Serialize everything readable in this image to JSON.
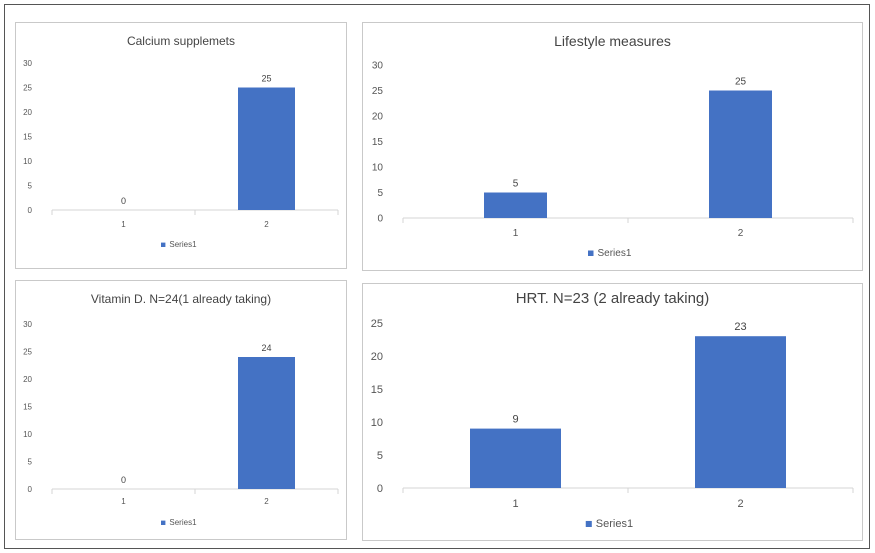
{
  "chart_data": [
    {
      "type": "bar",
      "title": "Calcium supplemets",
      "categories": [
        "1",
        "2"
      ],
      "series": [
        {
          "name": "Series1",
          "values": [
            0,
            25
          ]
        }
      ],
      "data_labels": [
        "0",
        "25"
      ],
      "yticks": [
        "0",
        "5",
        "10",
        "15",
        "20",
        "25",
        "30"
      ],
      "ylim": [
        0,
        30
      ],
      "xlabel": "",
      "ylabel": "",
      "legend": "bottom",
      "color": "#4472C4"
    },
    {
      "type": "bar",
      "title": "Lifestyle measures",
      "categories": [
        "1",
        "2"
      ],
      "series": [
        {
          "name": "Series1",
          "values": [
            5,
            25
          ]
        }
      ],
      "data_labels": [
        "5",
        "25"
      ],
      "yticks": [
        "0",
        "5",
        "10",
        "15",
        "20",
        "25",
        "30"
      ],
      "ylim": [
        0,
        30
      ],
      "xlabel": "",
      "ylabel": "",
      "legend": "bottom",
      "color": "#4472C4"
    },
    {
      "type": "bar",
      "title": "Vitamin D. N=24(1 already taking)",
      "categories": [
        "1",
        "2"
      ],
      "series": [
        {
          "name": "Series1",
          "values": [
            0,
            24
          ]
        }
      ],
      "data_labels": [
        "0",
        "24"
      ],
      "yticks": [
        "0",
        "5",
        "10",
        "15",
        "20",
        "25",
        "30"
      ],
      "ylim": [
        0,
        30
      ],
      "xlabel": "",
      "ylabel": "",
      "legend": "bottom",
      "color": "#4472C4"
    },
    {
      "type": "bar",
      "title": "HRT. N=23 (2 already taking)",
      "categories": [
        "1",
        "2"
      ],
      "series": [
        {
          "name": "Series1",
          "values": [
            9,
            23
          ]
        }
      ],
      "data_labels": [
        "9",
        "23"
      ],
      "yticks": [
        "0",
        "5",
        "10",
        "15",
        "20",
        "25"
      ],
      "ylim": [
        0,
        25
      ],
      "xlabel": "",
      "ylabel": "",
      "legend": "bottom",
      "color": "#4472C4"
    }
  ]
}
